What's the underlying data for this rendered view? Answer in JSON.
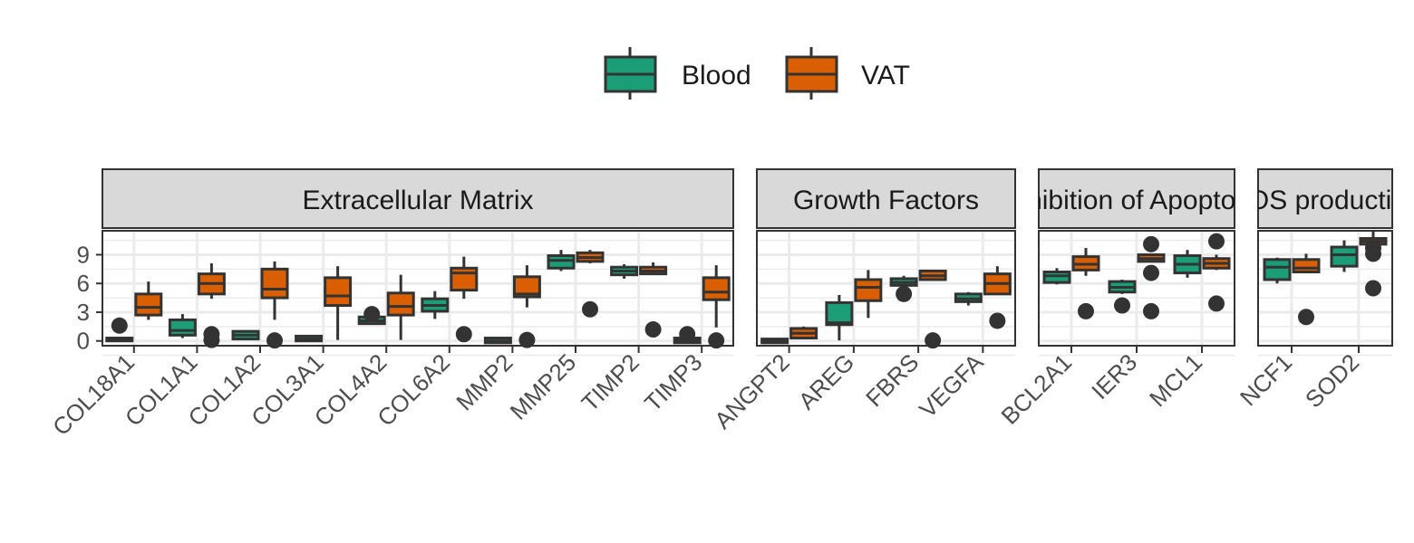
{
  "chart_data": {
    "type": "boxplot",
    "ylim": [
      -0.5,
      11.5
    ],
    "y_ticks": [
      0,
      3,
      6,
      9
    ],
    "grid": true,
    "legend_position": "top",
    "legend": [
      {
        "name": "Blood",
        "color": "#1b9e77"
      },
      {
        "name": "VAT",
        "color": "#d95f02"
      }
    ],
    "panels": [
      {
        "title": "Extracellular Matrix",
        "genes": [
          {
            "name": "COL18A1",
            "Blood": {
              "min": 0,
              "q1": 0,
              "median": 0.05,
              "q3": 0.3,
              "max": 0.35,
              "outliers": [
                1.6
              ]
            },
            "VAT": {
              "min": 2.2,
              "q1": 2.7,
              "median": 3.5,
              "q3": 4.9,
              "max": 6.2,
              "outliers": []
            }
          },
          {
            "name": "COL1A1",
            "Blood": {
              "min": 0.3,
              "q1": 0.6,
              "median": 1.1,
              "q3": 2.2,
              "max": 2.8,
              "outliers": []
            },
            "VAT": {
              "min": 4.4,
              "q1": 4.9,
              "median": 6.0,
              "q3": 7.0,
              "max": 8.1,
              "outliers": [
                0.7,
                0.1
              ]
            }
          },
          {
            "name": "COL1A2",
            "Blood": {
              "min": 0.1,
              "q1": 0.2,
              "median": 0.6,
              "q3": 1.0,
              "max": 1.1,
              "outliers": []
            },
            "VAT": {
              "min": 2.2,
              "q1": 4.5,
              "median": 5.4,
              "q3": 7.5,
              "max": 8.3,
              "outliers": [
                0.05
              ]
            }
          },
          {
            "name": "COL3A1",
            "Blood": {
              "min": 0,
              "q1": 0,
              "median": 0.2,
              "q3": 0.5,
              "max": 0.6,
              "outliers": []
            },
            "VAT": {
              "min": 0.1,
              "q1": 3.7,
              "median": 4.7,
              "q3": 6.6,
              "max": 7.8,
              "outliers": []
            }
          },
          {
            "name": "COL4A2",
            "Blood": {
              "min": 1.8,
              "q1": 1.8,
              "median": 2.1,
              "q3": 2.5,
              "max": 2.5,
              "outliers": [
                2.8
              ]
            },
            "VAT": {
              "min": 0.1,
              "q1": 2.7,
              "median": 3.6,
              "q3": 5.0,
              "max": 6.9,
              "outliers": []
            }
          },
          {
            "name": "COL6A2",
            "Blood": {
              "min": 2.3,
              "q1": 3.1,
              "median": 3.7,
              "q3": 4.4,
              "max": 5.2,
              "outliers": []
            },
            "VAT": {
              "min": 4.4,
              "q1": 5.3,
              "median": 7.1,
              "q3": 7.6,
              "max": 8.8,
              "outliers": [
                0.7
              ]
            }
          },
          {
            "name": "MMP2",
            "Blood": {
              "min": -0.2,
              "q1": -0.2,
              "median": 0.0,
              "q3": 0.3,
              "max": 0.3,
              "outliers": []
            },
            "VAT": {
              "min": 3.5,
              "q1": 4.6,
              "median": 4.9,
              "q3": 6.7,
              "max": 7.9,
              "outliers": [
                0.1
              ]
            }
          },
          {
            "name": "MMP25",
            "Blood": {
              "min": 7.3,
              "q1": 7.6,
              "median": 8.4,
              "q3": 8.9,
              "max": 9.5,
              "outliers": []
            },
            "VAT": {
              "min": 8.1,
              "q1": 8.3,
              "median": 8.7,
              "q3": 9.2,
              "max": 9.5,
              "outliers": [
                3.3
              ]
            }
          },
          {
            "name": "TIMP2",
            "Blood": {
              "min": 6.5,
              "q1": 6.9,
              "median": 7.3,
              "q3": 7.7,
              "max": 8.0,
              "outliers": []
            },
            "VAT": {
              "min": 6.9,
              "q1": 7.0,
              "median": 7.3,
              "q3": 7.7,
              "max": 8.2,
              "outliers": [
                1.2
              ]
            }
          },
          {
            "name": "TIMP3",
            "Blood": {
              "min": -0.2,
              "q1": -0.2,
              "median": 0.05,
              "q3": 0.3,
              "max": 0.3,
              "outliers": [
                0.7
              ]
            },
            "VAT": {
              "min": 1.4,
              "q1": 4.3,
              "median": 5.1,
              "q3": 6.6,
              "max": 7.9,
              "outliers": [
                0.05
              ]
            }
          }
        ]
      },
      {
        "title": "Growth Factors",
        "genes": [
          {
            "name": "ANGPT2",
            "Blood": {
              "min": -0.2,
              "q1": -0.2,
              "median": 0.0,
              "q3": 0.2,
              "max": 0.25,
              "outliers": []
            },
            "VAT": {
              "min": 0.2,
              "q1": 0.3,
              "median": 0.8,
              "q3": 1.3,
              "max": 1.5,
              "outliers": []
            }
          },
          {
            "name": "AREG",
            "Blood": {
              "min": 0.05,
              "q1": 1.7,
              "median": 1.9,
              "q3": 4.0,
              "max": 4.8,
              "outliers": []
            },
            "VAT": {
              "min": 2.4,
              "q1": 4.2,
              "median": 5.6,
              "q3": 6.4,
              "max": 7.4,
              "outliers": []
            }
          },
          {
            "name": "FBRS",
            "Blood": {
              "min": 5.7,
              "q1": 5.8,
              "median": 6.1,
              "q3": 6.5,
              "max": 6.8,
              "outliers": [
                4.9
              ]
            },
            "VAT": {
              "min": 6.3,
              "q1": 6.4,
              "median": 6.8,
              "q3": 7.3,
              "max": 7.4,
              "outliers": [
                0.05
              ]
            }
          },
          {
            "name": "VEGFA",
            "Blood": {
              "min": 3.7,
              "q1": 4.1,
              "median": 4.4,
              "q3": 4.9,
              "max": 5.1,
              "outliers": []
            },
            "VAT": {
              "min": 4.8,
              "q1": 4.9,
              "median": 6.0,
              "q3": 7.0,
              "max": 7.8,
              "outliers": [
                2.1
              ]
            }
          }
        ]
      },
      {
        "title": "Inhibition of Apoptosis",
        "genes": [
          {
            "name": "BCL2A1",
            "Blood": {
              "min": 5.9,
              "q1": 6.1,
              "median": 6.8,
              "q3": 7.2,
              "max": 7.6,
              "outliers": []
            },
            "VAT": {
              "min": 6.8,
              "q1": 7.4,
              "median": 8.0,
              "q3": 8.8,
              "max": 9.7,
              "outliers": [
                3.1
              ]
            }
          },
          {
            "name": "IER3",
            "Blood": {
              "min": 4.9,
              "q1": 5.1,
              "median": 5.6,
              "q3": 6.2,
              "max": 6.4,
              "outliers": [
                3.7
              ]
            },
            "VAT": {
              "min": 8.2,
              "q1": 8.3,
              "median": 8.6,
              "q3": 9.0,
              "max": 9.1,
              "outliers": [
                10.1,
                7.1,
                3.1
              ]
            }
          },
          {
            "name": "MCL1",
            "Blood": {
              "min": 6.6,
              "q1": 7.1,
              "median": 8.0,
              "q3": 8.9,
              "max": 9.5,
              "outliers": []
            },
            "VAT": {
              "min": 7.4,
              "q1": 7.6,
              "median": 8.1,
              "q3": 8.6,
              "max": 9.0,
              "outliers": [
                10.4,
                3.9
              ]
            }
          }
        ]
      },
      {
        "title": "ROS production",
        "genes": [
          {
            "name": "NCF1",
            "Blood": {
              "min": 6.0,
              "q1": 6.4,
              "median": 7.7,
              "q3": 8.5,
              "max": 8.7,
              "outliers": []
            },
            "VAT": {
              "min": 7.2,
              "q1": 7.2,
              "median": 7.6,
              "q3": 8.5,
              "max": 9.1,
              "outliers": [
                2.5
              ]
            }
          },
          {
            "name": "SOD2",
            "Blood": {
              "min": 7.2,
              "q1": 7.8,
              "median": 9.0,
              "q3": 9.8,
              "max": 10.5,
              "outliers": []
            },
            "VAT": {
              "min": 10.0,
              "q1": 10.1,
              "median": 10.4,
              "q3": 10.7,
              "max": 11.6,
              "outliers": [
                9.1,
                9.7,
                5.5
              ]
            }
          }
        ]
      }
    ]
  }
}
